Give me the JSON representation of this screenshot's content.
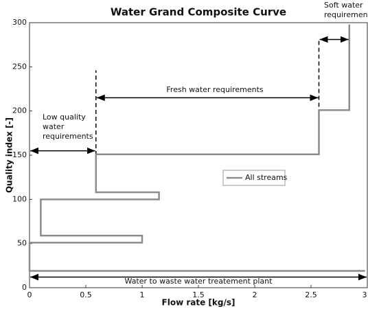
{
  "chart_data": {
    "type": "line",
    "title": "Water Grand Composite Curve",
    "xlabel": "Flow rate [kg/s]",
    "ylabel": "Quality index [-]",
    "x": [
      2.84,
      2.84,
      2.57,
      2.57,
      0.59,
      0.59,
      1.15,
      1.15,
      0.1,
      0.1,
      1.0,
      1.0,
      0,
      0,
      2.98
    ],
    "series": [
      {
        "name": "All streams",
        "color": "#8c8c8c",
        "values": [
          298,
          201,
          201,
          151,
          151,
          108,
          108,
          100,
          100,
          59,
          59,
          51,
          51,
          19,
          19
        ]
      }
    ],
    "xlim": [
      0,
      3
    ],
    "xticks": [
      0,
      0.5,
      1,
      1.5,
      2,
      2.5,
      3
    ],
    "ylim": [
      0,
      300
    ],
    "yticks": [
      0,
      50,
      100,
      150,
      200,
      250,
      300
    ],
    "grid": false,
    "legend": "center",
    "dashed_lines": [
      {
        "x": 0.59,
        "y": [
          150,
          246
        ]
      },
      {
        "x": 2.57,
        "y": [
          197,
          280
        ]
      }
    ],
    "annotations": [
      {
        "lines": [
          "Low quality",
          "water",
          "requirements"
        ],
        "x": [
          0,
          0.59
        ],
        "y": 155
      },
      {
        "lines": [
          "Fresh water requirements"
        ],
        "x": [
          0.59,
          2.57
        ],
        "y": 215
      },
      {
        "lines": [
          "Soft water",
          "requirements"
        ],
        "x": [
          2.57,
          2.84
        ],
        "y": 281
      },
      {
        "lines": [
          "Water to waste water treatement plant"
        ],
        "x": [
          0,
          3
        ],
        "y": 12
      }
    ]
  }
}
